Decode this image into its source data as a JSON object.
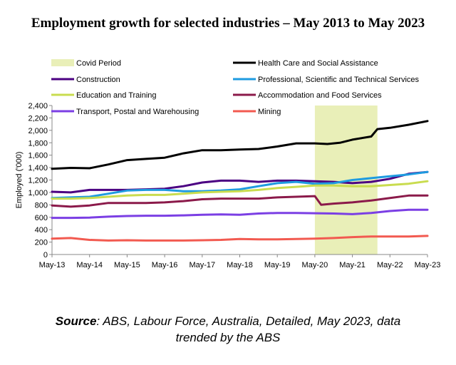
{
  "title": "Employment growth for selected industries – May 2013 to May 2023",
  "source": {
    "label": "Source",
    "line1": ":  ABS, Labour Force, Australia, Detailed, May 2023, data",
    "line2": "trended by the ABS"
  },
  "chart_data": {
    "type": "line",
    "title": "Employment growth for selected industries – May 2013 to May 2023",
    "ylabel": "Employed ('000)",
    "xlabel": "",
    "ylim": [
      0,
      2400
    ],
    "yticks": [
      0,
      200,
      400,
      600,
      800,
      1000,
      1200,
      1400,
      1600,
      1800,
      2000,
      2200,
      2400
    ],
    "xlim": [
      0,
      120
    ],
    "x_ticks": [
      {
        "label": "May-13",
        "x": 0
      },
      {
        "label": "May-14",
        "x": 12
      },
      {
        "label": "May-15",
        "x": 24
      },
      {
        "label": "May-16",
        "x": 36
      },
      {
        "label": "May-17",
        "x": 48
      },
      {
        "label": "May-18",
        "x": 60
      },
      {
        "label": "May-19",
        "x": 72
      },
      {
        "label": "May-20",
        "x": 84
      },
      {
        "label": "May-21",
        "x": 96
      },
      {
        "label": "May-22",
        "x": 108
      },
      {
        "label": "May-23",
        "x": 120
      }
    ],
    "covid_period": {
      "name": "Covid Period",
      "x_start": 84,
      "x_end": 104,
      "color": "#e9efb8"
    },
    "legend_position": "top",
    "grid": false,
    "series": [
      {
        "name": "Health Care and Social Assistance",
        "color": "#000000",
        "points": [
          [
            0,
            1380
          ],
          [
            6,
            1395
          ],
          [
            12,
            1390
          ],
          [
            18,
            1450
          ],
          [
            24,
            1520
          ],
          [
            30,
            1540
          ],
          [
            36,
            1560
          ],
          [
            42,
            1630
          ],
          [
            48,
            1680
          ],
          [
            54,
            1680
          ],
          [
            60,
            1690
          ],
          [
            66,
            1700
          ],
          [
            72,
            1740
          ],
          [
            78,
            1790
          ],
          [
            84,
            1790
          ],
          [
            88,
            1780
          ],
          [
            92,
            1800
          ],
          [
            96,
            1850
          ],
          [
            102,
            1900
          ],
          [
            104,
            2020
          ],
          [
            108,
            2040
          ],
          [
            114,
            2090
          ],
          [
            120,
            2150
          ]
        ]
      },
      {
        "name": "Construction",
        "color": "#4b0082",
        "points": [
          [
            0,
            1010
          ],
          [
            6,
            1000
          ],
          [
            12,
            1040
          ],
          [
            18,
            1040
          ],
          [
            24,
            1040
          ],
          [
            30,
            1050
          ],
          [
            36,
            1060
          ],
          [
            42,
            1100
          ],
          [
            48,
            1160
          ],
          [
            54,
            1190
          ],
          [
            60,
            1190
          ],
          [
            66,
            1170
          ],
          [
            72,
            1190
          ],
          [
            78,
            1190
          ],
          [
            84,
            1180
          ],
          [
            90,
            1170
          ],
          [
            96,
            1150
          ],
          [
            102,
            1170
          ],
          [
            108,
            1220
          ],
          [
            114,
            1300
          ],
          [
            120,
            1330
          ]
        ]
      },
      {
        "name": "Professional, Scientific and Technical Services",
        "color": "#1e9be0",
        "points": [
          [
            0,
            910
          ],
          [
            6,
            920
          ],
          [
            12,
            930
          ],
          [
            18,
            980
          ],
          [
            24,
            1030
          ],
          [
            30,
            1040
          ],
          [
            36,
            1040
          ],
          [
            42,
            1020
          ],
          [
            48,
            1020
          ],
          [
            54,
            1030
          ],
          [
            60,
            1050
          ],
          [
            66,
            1100
          ],
          [
            72,
            1150
          ],
          [
            78,
            1170
          ],
          [
            84,
            1140
          ],
          [
            90,
            1150
          ],
          [
            96,
            1200
          ],
          [
            102,
            1230
          ],
          [
            108,
            1260
          ],
          [
            114,
            1290
          ],
          [
            120,
            1330
          ]
        ]
      },
      {
        "name": "Education and Training",
        "color": "#c9dc4f",
        "points": [
          [
            0,
            900
          ],
          [
            6,
            900
          ],
          [
            12,
            910
          ],
          [
            18,
            930
          ],
          [
            24,
            950
          ],
          [
            30,
            960
          ],
          [
            36,
            960
          ],
          [
            42,
            980
          ],
          [
            48,
            1000
          ],
          [
            54,
            1010
          ],
          [
            60,
            1020
          ],
          [
            66,
            1040
          ],
          [
            72,
            1070
          ],
          [
            78,
            1090
          ],
          [
            84,
            1110
          ],
          [
            90,
            1110
          ],
          [
            96,
            1100
          ],
          [
            102,
            1100
          ],
          [
            108,
            1120
          ],
          [
            114,
            1140
          ],
          [
            120,
            1180
          ]
        ]
      },
      {
        "name": "Accommodation and Food Services",
        "color": "#8b1a4a",
        "points": [
          [
            0,
            790
          ],
          [
            6,
            770
          ],
          [
            12,
            790
          ],
          [
            18,
            830
          ],
          [
            24,
            830
          ],
          [
            30,
            830
          ],
          [
            36,
            840
          ],
          [
            42,
            860
          ],
          [
            48,
            890
          ],
          [
            54,
            900
          ],
          [
            60,
            900
          ],
          [
            66,
            900
          ],
          [
            72,
            920
          ],
          [
            78,
            930
          ],
          [
            84,
            940
          ],
          [
            86,
            800
          ],
          [
            90,
            820
          ],
          [
            96,
            840
          ],
          [
            102,
            870
          ],
          [
            108,
            910
          ],
          [
            114,
            950
          ],
          [
            120,
            950
          ]
        ]
      },
      {
        "name": "Transport, Postal and Warehousing",
        "color": "#7b3fe4",
        "points": [
          [
            0,
            590
          ],
          [
            6,
            590
          ],
          [
            12,
            595
          ],
          [
            18,
            610
          ],
          [
            24,
            620
          ],
          [
            30,
            625
          ],
          [
            36,
            625
          ],
          [
            42,
            630
          ],
          [
            48,
            640
          ],
          [
            54,
            645
          ],
          [
            60,
            640
          ],
          [
            66,
            660
          ],
          [
            72,
            670
          ],
          [
            78,
            670
          ],
          [
            84,
            665
          ],
          [
            90,
            660
          ],
          [
            96,
            650
          ],
          [
            102,
            670
          ],
          [
            108,
            700
          ],
          [
            114,
            720
          ],
          [
            120,
            720
          ]
        ]
      },
      {
        "name": "Mining",
        "color": "#f25a50",
        "points": [
          [
            0,
            255
          ],
          [
            6,
            265
          ],
          [
            12,
            235
          ],
          [
            18,
            225
          ],
          [
            24,
            230
          ],
          [
            30,
            225
          ],
          [
            36,
            225
          ],
          [
            42,
            225
          ],
          [
            48,
            230
          ],
          [
            54,
            235
          ],
          [
            60,
            250
          ],
          [
            66,
            245
          ],
          [
            72,
            245
          ],
          [
            78,
            250
          ],
          [
            84,
            255
          ],
          [
            90,
            265
          ],
          [
            96,
            280
          ],
          [
            102,
            290
          ],
          [
            108,
            290
          ],
          [
            114,
            290
          ],
          [
            120,
            300
          ]
        ]
      }
    ]
  }
}
